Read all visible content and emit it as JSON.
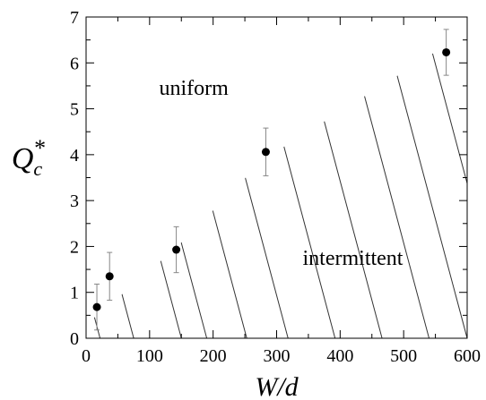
{
  "chart_data": {
    "type": "scatter",
    "x_axis": {
      "label": "W/d",
      "range": [
        0,
        600
      ],
      "ticks": [
        0,
        100,
        200,
        300,
        400,
        500,
        600
      ]
    },
    "y_axis": {
      "label": "Q*_c",
      "label_main": "Q",
      "label_sub": "c",
      "label_sup": "*",
      "range": [
        0,
        7
      ],
      "ticks": [
        0,
        1,
        2,
        3,
        4,
        5,
        6,
        7
      ]
    },
    "grid": false,
    "series": [
      {
        "points": [
          {
            "x": 17,
            "y": 0.68,
            "err": 0.5
          },
          {
            "x": 37,
            "y": 1.35,
            "err": 0.52
          },
          {
            "x": 142,
            "y": 1.93,
            "err": 0.5
          },
          {
            "x": 283,
            "y": 4.06,
            "err": 0.52
          },
          {
            "x": 567,
            "y": 6.23,
            "err": 0.5
          }
        ]
      }
    ],
    "regions": [
      {
        "label": "uniform",
        "x": 115,
        "y": 5.3
      },
      {
        "label": "intermittent",
        "x": 420,
        "y": 1.6
      }
    ],
    "hatched_region": {
      "boundary": [
        [
          0,
          0.3
        ],
        [
          60,
          1.0
        ],
        [
          140,
          1.95
        ],
        [
          280,
          3.9
        ],
        [
          580,
          6.5
        ],
        [
          600,
          6.75
        ]
      ],
      "hatch_x_at_axis": [
        22,
        75,
        150,
        190,
        253,
        318,
        392,
        466,
        540,
        600,
        665,
        740
      ]
    }
  }
}
